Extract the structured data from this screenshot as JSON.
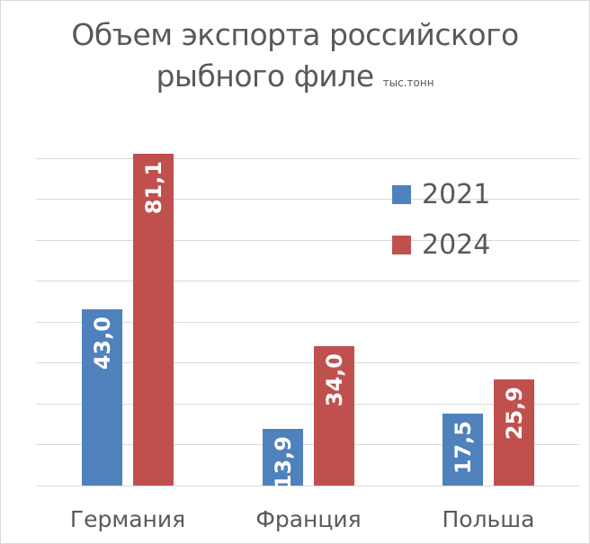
{
  "chart_data": {
    "type": "bar",
    "title": "Объем экспорта российского рыбного филе",
    "title_line1": "Объем экспорта российского",
    "title_line2": "рыбного филе",
    "unit": "тыс.тонн",
    "xlabel": "",
    "ylabel": "",
    "ylim": [
      0,
      90
    ],
    "grid": true,
    "gridlines": [
      0,
      10,
      20,
      30,
      40,
      50,
      60,
      70,
      80
    ],
    "legend_position": "inside-top-right",
    "categories": [
      "Германия",
      "Франция",
      "Польша"
    ],
    "series": [
      {
        "name": "2021",
        "color": "#4f81bd",
        "values": [
          43.0,
          13.9,
          17.5
        ],
        "labels": [
          "43,0",
          "13,9",
          "17,5"
        ]
      },
      {
        "name": "2024",
        "color": "#c0504d",
        "values": [
          81.1,
          34.0,
          25.9
        ],
        "labels": [
          "81,1",
          "34,0",
          "25,9"
        ]
      }
    ]
  }
}
